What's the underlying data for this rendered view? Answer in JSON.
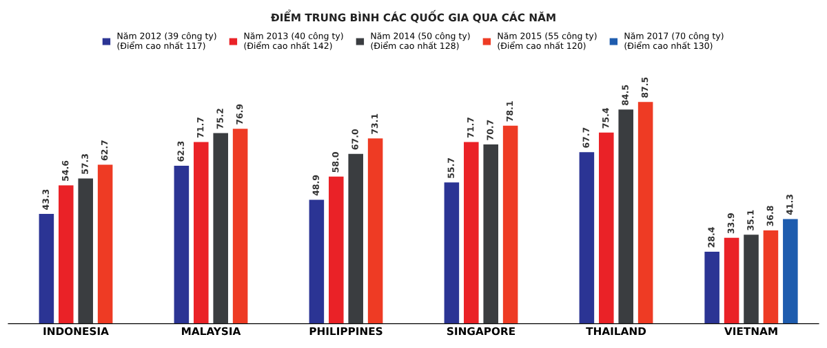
{
  "chart_data": {
    "type": "bar",
    "title": "ĐIỂM TRUNG BÌNH CÁC QUỐC GIA QUA CÁC NĂM",
    "categories": [
      "INDONESIA",
      "MALAYSIA",
      "PHILIPPINES",
      "SINGAPORE",
      "THAILAND",
      "VIETNAM"
    ],
    "series": [
      {
        "name": "Năm 2012 (39 công ty)\n(Điểm cao nhất 117)",
        "color": "#2b3494",
        "values": [
          43.3,
          62.3,
          48.9,
          55.7,
          67.7,
          28.4
        ],
        "value_labels": [
          "43.3",
          "62.3",
          "48.9",
          "55.7",
          "67.7",
          "28.4"
        ]
      },
      {
        "name": "Năm 2013 (40 công ty)\n(Điểm cao nhất 142)",
        "color": "#ea2227",
        "values": [
          54.6,
          71.7,
          58.0,
          71.7,
          75.4,
          33.9
        ],
        "value_labels": [
          "54.6",
          "71.7",
          "58.0",
          "71.7",
          "75.4",
          "33.9"
        ]
      },
      {
        "name": "Năm 2014 (50 công ty)\n(Điểm cao nhất 128)",
        "color": "#3a3d40",
        "values": [
          57.3,
          75.2,
          67.0,
          70.7,
          84.5,
          35.1
        ],
        "value_labels": [
          "57.3",
          "75.2",
          "67.0",
          "70.7",
          "84.5",
          "35.1"
        ]
      },
      {
        "name": "Năm 2015 (55 công ty)\n(Điểm cao nhất 120)",
        "color": "#ee3b24",
        "values": [
          62.7,
          76.9,
          73.1,
          78.1,
          87.5,
          36.8
        ],
        "value_labels": [
          "62.7",
          "76.9",
          "73.1",
          "78.1",
          "87.5",
          "36.8"
        ]
      },
      {
        "name": "Năm 2017 (70 công ty)\n(Điểm cao nhất 130)",
        "color": "#1e5cae",
        "values": [
          null,
          null,
          null,
          null,
          null,
          41.3
        ],
        "value_labels": [
          null,
          null,
          null,
          null,
          null,
          "41.3"
        ]
      }
    ],
    "legend": "top",
    "grid": false
  }
}
